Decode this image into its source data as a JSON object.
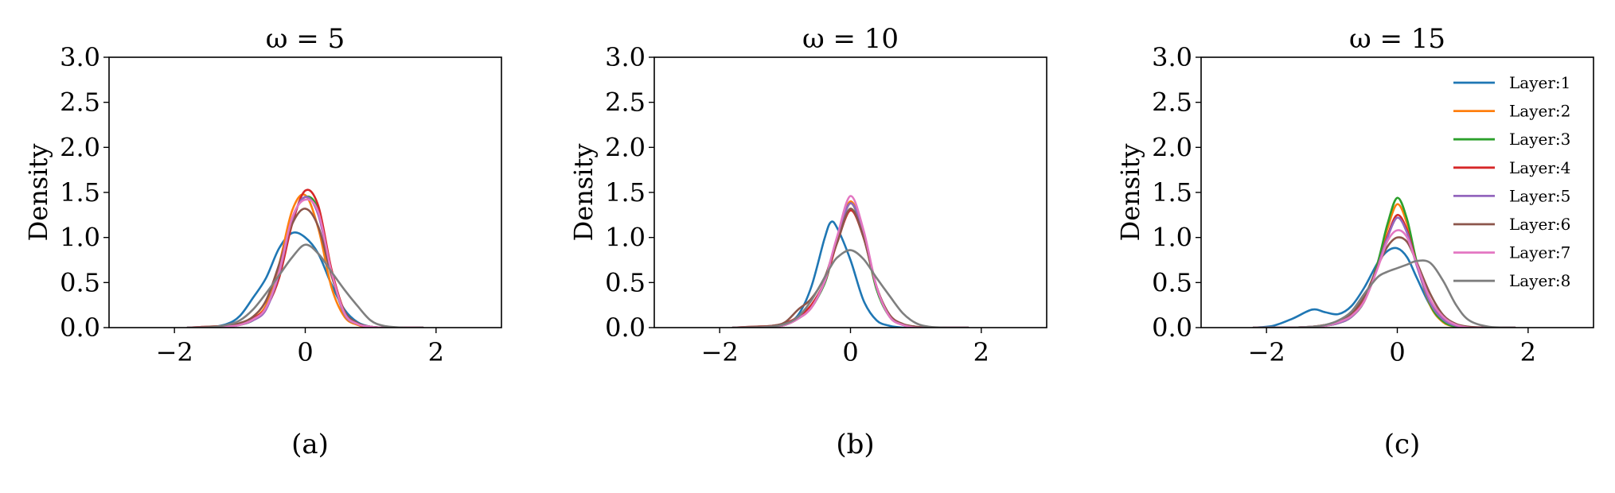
{
  "chart_data": [
    {
      "type": "line",
      "title": "ω = 5",
      "caption": "(a)",
      "ylabel": "Density",
      "xlabel": "",
      "xlim": [
        -3,
        3
      ],
      "ylim": [
        0,
        3
      ],
      "xticks": [
        -2,
        0,
        2
      ],
      "yticks": [
        0.0,
        0.5,
        1.0,
        1.5,
        2.0,
        2.5,
        3.0
      ],
      "grid": false,
      "x": [
        -1.8,
        -1.5,
        -1.2,
        -1.0,
        -0.8,
        -0.6,
        -0.4,
        -0.2,
        0.0,
        0.2,
        0.4,
        0.6,
        0.8,
        1.0,
        1.2,
        1.5,
        1.8
      ],
      "series": [
        {
          "name": "Layer:1",
          "color": "#1f77b4",
          "values": [
            0.0,
            0.0,
            0.04,
            0.13,
            0.33,
            0.55,
            0.88,
            1.05,
            1.0,
            0.82,
            0.48,
            0.2,
            0.06,
            0.01,
            0.0,
            0.0,
            0.0
          ]
        },
        {
          "name": "Layer:2",
          "color": "#ff7f0e",
          "values": [
            0.0,
            0.0,
            0.01,
            0.04,
            0.1,
            0.25,
            0.7,
            1.3,
            1.47,
            1.1,
            0.45,
            0.12,
            0.03,
            0.0,
            0.0,
            0.0,
            0.0
          ]
        },
        {
          "name": "Layer:3",
          "color": "#2ca02c",
          "values": [
            0.0,
            0.0,
            0.01,
            0.03,
            0.08,
            0.22,
            0.62,
            1.2,
            1.45,
            1.3,
            0.6,
            0.15,
            0.04,
            0.01,
            0.0,
            0.0,
            0.0
          ]
        },
        {
          "name": "Layer:4",
          "color": "#d62728",
          "values": [
            0.0,
            0.01,
            0.02,
            0.04,
            0.1,
            0.22,
            0.55,
            1.15,
            1.52,
            1.35,
            0.65,
            0.18,
            0.04,
            0.01,
            0.0,
            0.0,
            0.0
          ]
        },
        {
          "name": "Layer:5",
          "color": "#9467bd",
          "values": [
            0.0,
            0.0,
            0.01,
            0.03,
            0.08,
            0.2,
            0.6,
            1.2,
            1.45,
            1.25,
            0.6,
            0.15,
            0.04,
            0.01,
            0.0,
            0.0,
            0.0
          ]
        },
        {
          "name": "Layer:6",
          "color": "#8c564b",
          "values": [
            0.0,
            0.01,
            0.02,
            0.05,
            0.12,
            0.3,
            0.7,
            1.15,
            1.32,
            1.12,
            0.58,
            0.18,
            0.05,
            0.01,
            0.0,
            0.0,
            0.0
          ]
        },
        {
          "name": "Layer:7",
          "color": "#e377c2",
          "values": [
            0.0,
            0.0,
            0.01,
            0.03,
            0.09,
            0.22,
            0.62,
            1.22,
            1.42,
            1.28,
            0.62,
            0.16,
            0.04,
            0.01,
            0.0,
            0.0,
            0.0
          ]
        },
        {
          "name": "Layer:8",
          "color": "#7f7f7f",
          "values": [
            0.0,
            0.0,
            0.03,
            0.08,
            0.2,
            0.38,
            0.58,
            0.78,
            0.92,
            0.82,
            0.62,
            0.42,
            0.24,
            0.08,
            0.02,
            0.0,
            0.0
          ]
        }
      ]
    },
    {
      "type": "line",
      "title": "ω = 10",
      "caption": "(b)",
      "ylabel": "Density",
      "xlabel": "",
      "xlim": [
        -3,
        3
      ],
      "ylim": [
        0,
        3
      ],
      "xticks": [
        -2,
        0,
        2
      ],
      "yticks": [
        0.0,
        0.5,
        1.0,
        1.5,
        2.0,
        2.5,
        3.0
      ],
      "grid": false,
      "x": [
        -1.8,
        -1.5,
        -1.2,
        -1.0,
        -0.8,
        -0.6,
        -0.4,
        -0.3,
        -0.2,
        0.0,
        0.2,
        0.4,
        0.6,
        0.8,
        1.0,
        1.2,
        1.5,
        1.8
      ],
      "series": [
        {
          "name": "Layer:1",
          "color": "#1f77b4",
          "values": [
            0.0,
            0.0,
            0.01,
            0.04,
            0.14,
            0.45,
            0.98,
            1.17,
            1.1,
            0.75,
            0.3,
            0.08,
            0.02,
            0.0,
            0.0,
            0.0,
            0.0,
            0.0
          ]
        },
        {
          "name": "Layer:2",
          "color": "#ff7f0e",
          "values": [
            0.0,
            0.0,
            0.01,
            0.03,
            0.1,
            0.22,
            0.5,
            0.75,
            1.0,
            1.4,
            1.05,
            0.45,
            0.12,
            0.03,
            0.0,
            0.0,
            0.0,
            0.0
          ]
        },
        {
          "name": "Layer:3",
          "color": "#2ca02c",
          "values": [
            0.0,
            0.0,
            0.01,
            0.03,
            0.1,
            0.22,
            0.48,
            0.72,
            0.98,
            1.38,
            1.02,
            0.42,
            0.12,
            0.03,
            0.0,
            0.0,
            0.0,
            0.0
          ]
        },
        {
          "name": "Layer:4",
          "color": "#d62728",
          "values": [
            0.0,
            0.01,
            0.02,
            0.05,
            0.12,
            0.25,
            0.5,
            0.72,
            0.95,
            1.3,
            1.0,
            0.45,
            0.14,
            0.04,
            0.01,
            0.0,
            0.0,
            0.0
          ]
        },
        {
          "name": "Layer:5",
          "color": "#9467bd",
          "values": [
            0.0,
            0.0,
            0.01,
            0.03,
            0.1,
            0.22,
            0.5,
            0.75,
            1.0,
            1.38,
            1.05,
            0.45,
            0.12,
            0.03,
            0.0,
            0.0,
            0.0,
            0.0
          ]
        },
        {
          "name": "Layer:6",
          "color": "#8c564b",
          "values": [
            0.0,
            0.01,
            0.02,
            0.06,
            0.2,
            0.32,
            0.55,
            0.75,
            0.95,
            1.32,
            1.0,
            0.45,
            0.14,
            0.04,
            0.01,
            0.0,
            0.0,
            0.0
          ]
        },
        {
          "name": "Layer:7",
          "color": "#e377c2",
          "values": [
            0.0,
            0.0,
            0.01,
            0.03,
            0.1,
            0.22,
            0.5,
            0.76,
            1.02,
            1.46,
            1.08,
            0.45,
            0.12,
            0.03,
            0.0,
            0.0,
            0.0,
            0.0
          ]
        },
        {
          "name": "Layer:8",
          "color": "#7f7f7f",
          "values": [
            0.0,
            0.0,
            0.01,
            0.04,
            0.12,
            0.3,
            0.55,
            0.68,
            0.78,
            0.86,
            0.76,
            0.55,
            0.35,
            0.16,
            0.05,
            0.01,
            0.0,
            0.0
          ]
        }
      ]
    },
    {
      "type": "line",
      "title": "ω = 15",
      "caption": "(c)",
      "ylabel": "Density",
      "xlabel": "",
      "xlim": [
        -3,
        3
      ],
      "ylim": [
        0,
        3
      ],
      "xticks": [
        -2,
        0,
        2
      ],
      "yticks": [
        0.0,
        0.5,
        1.0,
        1.5,
        2.0,
        2.5,
        3.0
      ],
      "grid": false,
      "legend": "top-right",
      "x": [
        -2.2,
        -1.9,
        -1.6,
        -1.3,
        -1.1,
        -0.9,
        -0.7,
        -0.5,
        -0.3,
        -0.15,
        0.0,
        0.15,
        0.3,
        0.5,
        0.7,
        0.9,
        1.1,
        1.4,
        1.8
      ],
      "series": [
        {
          "name": "Layer:1",
          "color": "#1f77b4",
          "values": [
            0.0,
            0.02,
            0.1,
            0.2,
            0.17,
            0.15,
            0.24,
            0.45,
            0.72,
            0.85,
            0.88,
            0.78,
            0.55,
            0.25,
            0.08,
            0.02,
            0.0,
            0.0,
            0.0
          ]
        },
        {
          "name": "Layer:2",
          "color": "#ff7f0e",
          "values": [
            0.0,
            0.0,
            0.0,
            0.01,
            0.02,
            0.05,
            0.12,
            0.3,
            0.7,
            1.1,
            1.37,
            1.15,
            0.7,
            0.25,
            0.06,
            0.01,
            0.0,
            0.0,
            0.0
          ]
        },
        {
          "name": "Layer:3",
          "color": "#2ca02c",
          "values": [
            0.0,
            0.0,
            0.0,
            0.01,
            0.02,
            0.05,
            0.12,
            0.3,
            0.72,
            1.15,
            1.44,
            1.2,
            0.72,
            0.26,
            0.07,
            0.01,
            0.0,
            0.0,
            0.0
          ]
        },
        {
          "name": "Layer:4",
          "color": "#d62728",
          "values": [
            0.0,
            0.0,
            0.0,
            0.01,
            0.03,
            0.06,
            0.14,
            0.32,
            0.68,
            1.02,
            1.25,
            1.08,
            0.7,
            0.3,
            0.1,
            0.02,
            0.0,
            0.0,
            0.0
          ]
        },
        {
          "name": "Layer:5",
          "color": "#9467bd",
          "values": [
            0.0,
            0.0,
            0.0,
            0.01,
            0.02,
            0.05,
            0.12,
            0.3,
            0.68,
            1.0,
            1.22,
            1.05,
            0.68,
            0.28,
            0.09,
            0.02,
            0.0,
            0.0,
            0.0
          ]
        },
        {
          "name": "Layer:6",
          "color": "#8c564b",
          "values": [
            0.0,
            0.0,
            0.0,
            0.01,
            0.03,
            0.07,
            0.16,
            0.35,
            0.68,
            0.9,
            1.0,
            0.95,
            0.72,
            0.38,
            0.14,
            0.04,
            0.01,
            0.0,
            0.0
          ]
        },
        {
          "name": "Layer:7",
          "color": "#e377c2",
          "values": [
            0.0,
            0.0,
            0.0,
            0.01,
            0.02,
            0.06,
            0.13,
            0.3,
            0.66,
            0.96,
            1.08,
            1.0,
            0.7,
            0.32,
            0.12,
            0.03,
            0.0,
            0.0,
            0.0
          ]
        },
        {
          "name": "Layer:8",
          "color": "#7f7f7f",
          "values": [
            0.0,
            0.0,
            0.0,
            0.01,
            0.03,
            0.08,
            0.18,
            0.38,
            0.56,
            0.62,
            0.66,
            0.7,
            0.74,
            0.72,
            0.52,
            0.25,
            0.08,
            0.01,
            0.0
          ]
        }
      ]
    }
  ]
}
